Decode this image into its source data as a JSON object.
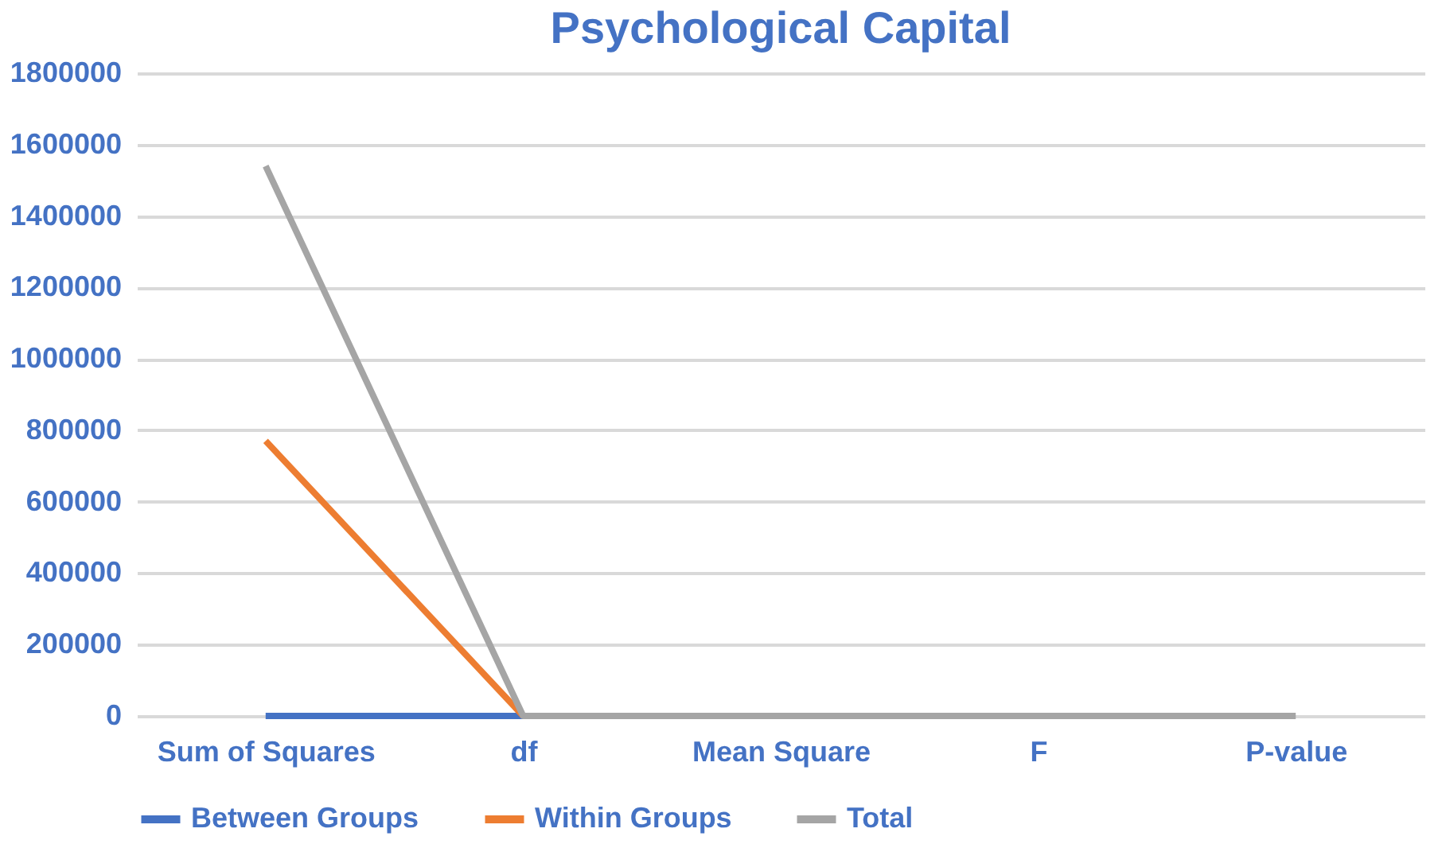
{
  "chart_data": {
    "type": "line",
    "title": "Psychological Capital",
    "categories": [
      "Sum of Squares",
      "df",
      "Mean Square",
      "F",
      "P-value"
    ],
    "series": [
      {
        "name": "Between Groups",
        "color": "#4472c4",
        "values": [
          0,
          0,
          null,
          null,
          null
        ]
      },
      {
        "name": "Within Groups",
        "color": "#ed7d31",
        "values": [
          770000,
          0,
          null,
          null,
          null
        ]
      },
      {
        "name": "Total",
        "color": "#a5a5a5",
        "values": [
          1540000,
          0,
          0,
          0,
          0
        ]
      }
    ],
    "ylim": [
      0,
      1800000
    ],
    "yticks": [
      0,
      200000,
      400000,
      600000,
      800000,
      1000000,
      1200000,
      1400000,
      1600000,
      1800000
    ],
    "grid": "y",
    "legend": "bottom",
    "marker": "none",
    "line_style": "solid"
  }
}
